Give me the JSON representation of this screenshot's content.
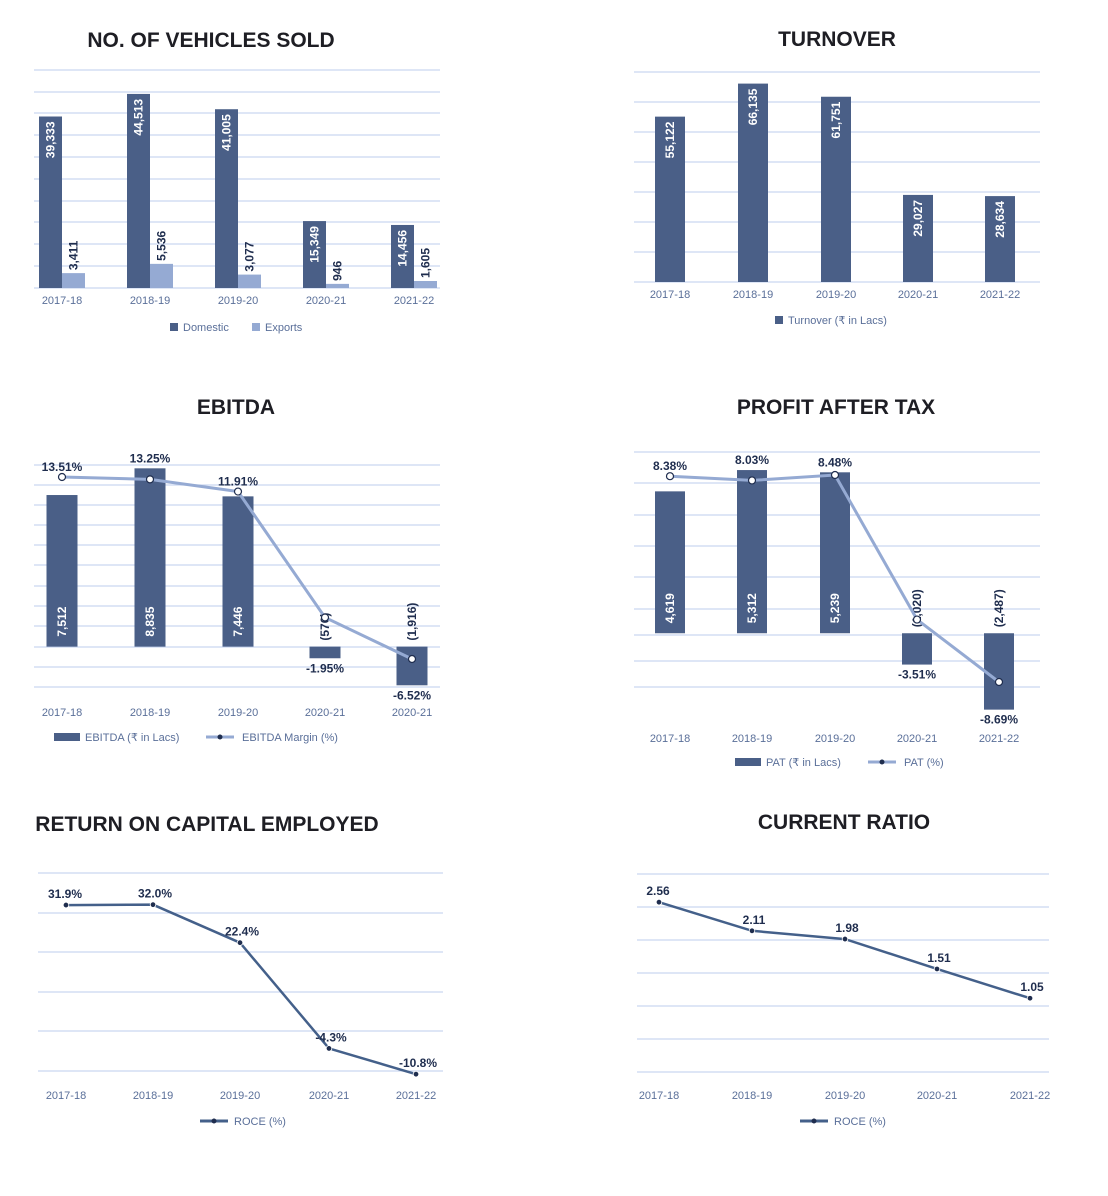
{
  "colors": {
    "primary": "#4a5f87",
    "secondary": "#95aad3",
    "grid": "#c9d6f0",
    "axis_text": "#5a6f99",
    "label_dark": "#1f2d4e",
    "roce_line": "#44608a"
  },
  "chart_data": [
    {
      "type": "bar",
      "title": "NO. OF VEHICLES SOLD",
      "categories": [
        "2017-18",
        "2018-19",
        "2019-20",
        "2020-21",
        "2021-22"
      ],
      "series": [
        {
          "name": "Domestic",
          "values": [
            39333,
            44513,
            41005,
            15349,
            14456
          ],
          "labels": [
            "39,333",
            "44,513",
            "41,005",
            "15,349",
            "14,456"
          ]
        },
        {
          "name": "Exports",
          "values": [
            3411,
            5536,
            3077,
            946,
            1605
          ],
          "labels": [
            "3,411",
            "5,536",
            "3,077",
            "946",
            "1,605"
          ]
        }
      ],
      "ylim": [
        0,
        50000
      ],
      "grid": true,
      "legend": "bottom"
    },
    {
      "type": "bar",
      "title": "TURNOVER",
      "categories": [
        "2017-18",
        "2018-19",
        "2019-20",
        "2020-21",
        "2021-22"
      ],
      "series": [
        {
          "name": "Turnover (₹ in Lacs)",
          "values": [
            55122,
            66135,
            61751,
            29027,
            28634
          ],
          "labels": [
            "55,122",
            "66,135",
            "61,751",
            "29,027",
            "28,634"
          ]
        }
      ],
      "ylim": [
        0,
        70000
      ],
      "grid": true,
      "legend": "bottom"
    },
    {
      "type": "bar+line",
      "title": "EBITDA",
      "categories": [
        "2017-18",
        "2018-19",
        "2019-20",
        "2020-21",
        "2020-21"
      ],
      "series": [
        {
          "name": "EBITDA (₹ in Lacs)",
          "values": [
            7512,
            8835,
            7446,
            -576,
            -1916
          ],
          "labels": [
            "7,512",
            "8,835",
            "7,446",
            "(576)",
            "(1,916)"
          ]
        },
        {
          "name": "EBITDA Margin (%)",
          "values": [
            13.51,
            13.25,
            11.91,
            -1.95,
            -6.52
          ],
          "labels": [
            "13.51%",
            "13.25%",
            "11.91%",
            "-1.95%",
            "-6.52%"
          ]
        }
      ],
      "ylim": [
        -2000,
        9000
      ],
      "grid": true,
      "legend": "bottom"
    },
    {
      "type": "bar+line",
      "title": "PROFIT AFTER TAX",
      "categories": [
        "2017-18",
        "2018-19",
        "2019-20",
        "2020-21",
        "2021-22"
      ],
      "series": [
        {
          "name": "PAT (₹ in Lacs)",
          "values": [
            4619,
            5312,
            5239,
            -1020,
            -2487
          ],
          "labels": [
            "4,619",
            "5,312",
            "5,239",
            "(1,020)",
            "(2,487)"
          ]
        },
        {
          "name": "PAT (%)",
          "values": [
            8.38,
            8.03,
            8.48,
            -3.51,
            -8.69
          ],
          "labels": [
            "8.38%",
            "8.03%",
            "8.48%",
            "-3.51%",
            "-8.69%"
          ]
        }
      ],
      "ylim": [
        -1750,
        5900
      ],
      "grid": true,
      "legend": "bottom"
    },
    {
      "type": "line",
      "title": "RETURN ON CAPITAL EMPLOYED",
      "categories": [
        "2017-18",
        "2018-19",
        "2019-20",
        "2020-21",
        "2021-22"
      ],
      "series": [
        {
          "name": "ROCE (%)",
          "values": [
            31.9,
            32.0,
            22.4,
            -4.3,
            -10.8
          ],
          "labels": [
            "31.9%",
            "32.0%",
            "22.4%",
            "-4.3%",
            "-10.8%"
          ]
        }
      ],
      "ylim": [
        -10,
        40
      ],
      "grid": true,
      "legend": "bottom"
    },
    {
      "type": "line",
      "title": "CURRENT RATIO",
      "categories": [
        "2017-18",
        "2018-19",
        "2019-20",
        "2020-21",
        "2021-22"
      ],
      "series": [
        {
          "name": "ROCE (%)",
          "values": [
            2.56,
            2.11,
            1.98,
            1.51,
            1.05
          ],
          "labels": [
            "2.56",
            "2.11",
            "1.98",
            "1.51",
            "1.05"
          ]
        }
      ],
      "ylim": [
        0,
        3
      ],
      "grid": true,
      "legend": "bottom"
    }
  ]
}
